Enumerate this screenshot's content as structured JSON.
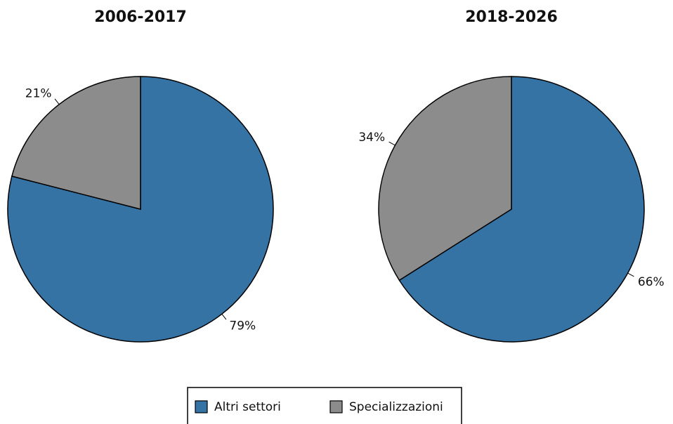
{
  "chart_data": [
    {
      "type": "pie",
      "title": "2006-2017",
      "categories": [
        "Altri settori",
        "Specializzazioni"
      ],
      "values": [
        79,
        21
      ],
      "value_labels": [
        "79%",
        "21%"
      ],
      "colors": [
        "#3673a5",
        "#8c8c8c"
      ],
      "legend": "bottom"
    },
    {
      "type": "pie",
      "title": "2018-2026",
      "categories": [
        "Altri settori",
        "Specializzazioni"
      ],
      "values": [
        66,
        34
      ],
      "value_labels": [
        "66%",
        "34%"
      ],
      "colors": [
        "#3673a5",
        "#8c8c8c"
      ],
      "legend": "bottom"
    }
  ]
}
